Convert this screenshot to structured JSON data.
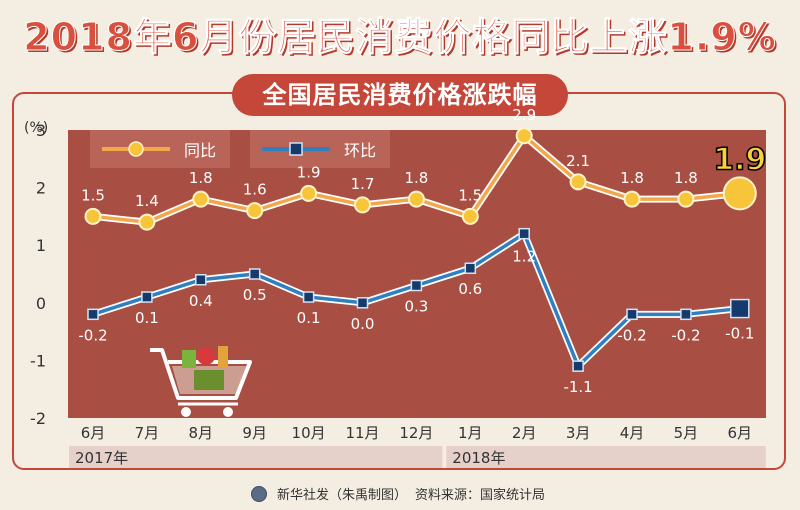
{
  "header": {
    "title": "2018年6月份居民消费价格同比上涨1.9%",
    "subtitle": "全国居民消费价格涨跌幅"
  },
  "footer": {
    "credit": "新华社发（朱禹制图）",
    "source": "资料来源：国家统计局"
  },
  "colors": {
    "plot_bg": "#a94e42",
    "yoy_line": "#f2a84a",
    "yoy_marker": "#f7c43a",
    "mom_line": "#2f7fc1",
    "mom_marker": "#163a6b",
    "accent": "#c4473a"
  },
  "chart_data": {
    "type": "line",
    "unit_label": "(%)",
    "ylim": [
      -2,
      3
    ],
    "yticks": [
      3,
      2,
      1,
      0,
      -1,
      -2
    ],
    "categories": [
      "6月",
      "7月",
      "8月",
      "9月",
      "10月",
      "11月",
      "12月",
      "1月",
      "2月",
      "3月",
      "4月",
      "5月",
      "6月"
    ],
    "year_labels": [
      {
        "label": "2017年",
        "start": 0,
        "end": 6
      },
      {
        "label": "2018年",
        "start": 7,
        "end": 12
      }
    ],
    "series": [
      {
        "key": "yoy",
        "name": "同比",
        "values": [
          1.5,
          1.4,
          1.8,
          1.6,
          1.9,
          1.7,
          1.8,
          1.5,
          2.9,
          2.1,
          1.8,
          1.8,
          1.9
        ],
        "labels": [
          "1.5",
          "1.4",
          "1.8",
          "1.6",
          "1.9",
          "1.7",
          "1.8",
          "1.5",
          "2.9",
          "2.1",
          "1.8",
          "1.8",
          "1.9"
        ]
      },
      {
        "key": "mom",
        "name": "环比",
        "values": [
          -0.2,
          0.1,
          0.4,
          0.5,
          0.1,
          0.0,
          0.3,
          0.6,
          1.2,
          -1.1,
          -0.2,
          -0.2,
          -0.1
        ],
        "labels": [
          "-0.2",
          "0.1",
          "0.4",
          "0.5",
          "0.1",
          "0.0",
          "0.3",
          "0.6",
          "1.2",
          "-1.1",
          "-0.2",
          "-0.2",
          "-0.1"
        ]
      }
    ],
    "legend_position": "top-left",
    "grid": false
  }
}
